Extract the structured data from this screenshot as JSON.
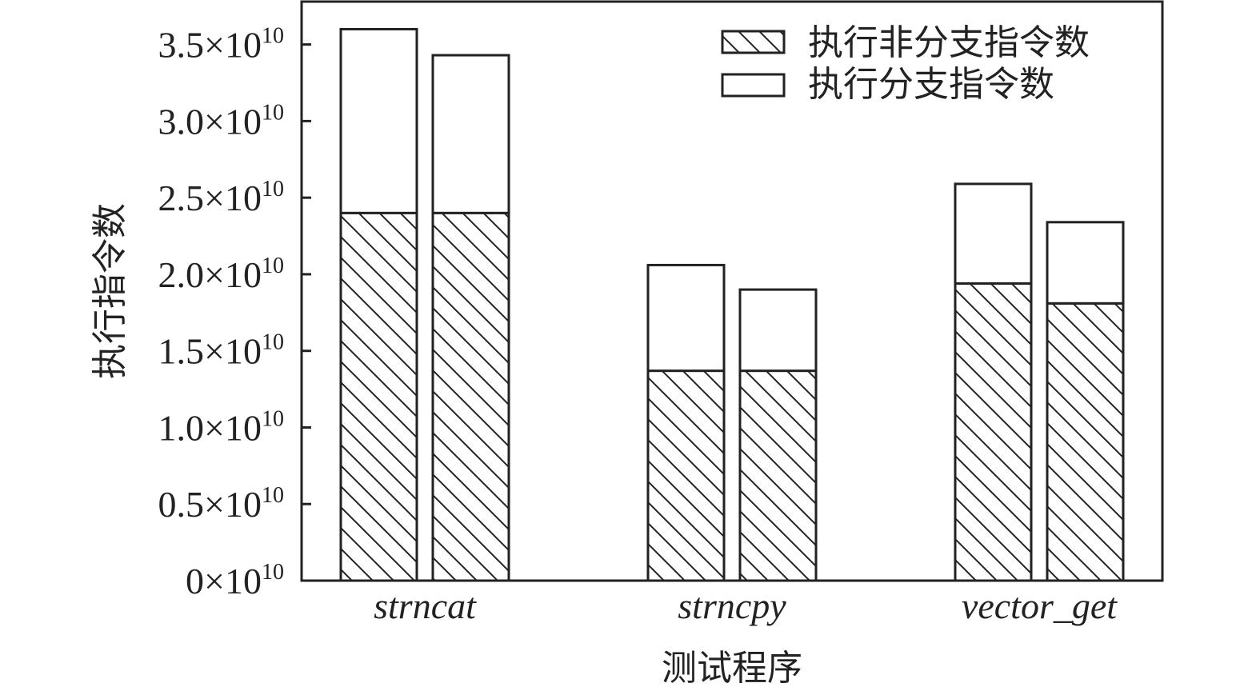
{
  "chart_data": {
    "type": "bar",
    "stacked": true,
    "categories": [
      "strncat",
      "strncpy",
      "vector_get"
    ],
    "bars_per_category": 2,
    "series": [
      {
        "name": "执行非分支指令数",
        "pattern": "hatched",
        "values": [
          [
            24000000000.0,
            24000000000.0
          ],
          [
            13700000000.0,
            13700000000.0
          ],
          [
            19400000000.0,
            18100000000.0
          ]
        ]
      },
      {
        "name": "执行分支指令数",
        "pattern": "blank",
        "values": [
          [
            12000000000.0,
            10300000000.0
          ],
          [
            6900000000.0,
            5300000000.0
          ],
          [
            6500000000.0,
            5300000000.0
          ]
        ]
      }
    ],
    "totals": [
      [
        36000000000.0,
        34300000000.0
      ],
      [
        20600000000.0,
        19000000000.0
      ],
      [
        25900000000.0,
        23400000000.0
      ]
    ],
    "ylim": [
      0,
      37800000000.0
    ],
    "ytick_values": [
      0,
      5000000000.0,
      10000000000.0,
      15000000000.0,
      20000000000.0,
      25000000000.0,
      30000000000.0,
      35000000000.0
    ],
    "ytick_labels": [
      {
        "mantissa": "0",
        "exp": "10"
      },
      {
        "mantissa": "0.5",
        "exp": "10"
      },
      {
        "mantissa": "1.0",
        "exp": "10"
      },
      {
        "mantissa": "1.5",
        "exp": "10"
      },
      {
        "mantissa": "2.0",
        "exp": "10"
      },
      {
        "mantissa": "2.5",
        "exp": "10"
      },
      {
        "mantissa": "3.0",
        "exp": "10"
      },
      {
        "mantissa": "3.5",
        "exp": "10"
      }
    ],
    "ytick_times_base": "×10",
    "xlabel": "测试程序",
    "ylabel": "执行指令数",
    "legend_position": "top-right",
    "grid": false,
    "colors": {
      "stroke": "#222222",
      "fill": "#ffffff",
      "hatch": "#222222"
    }
  }
}
